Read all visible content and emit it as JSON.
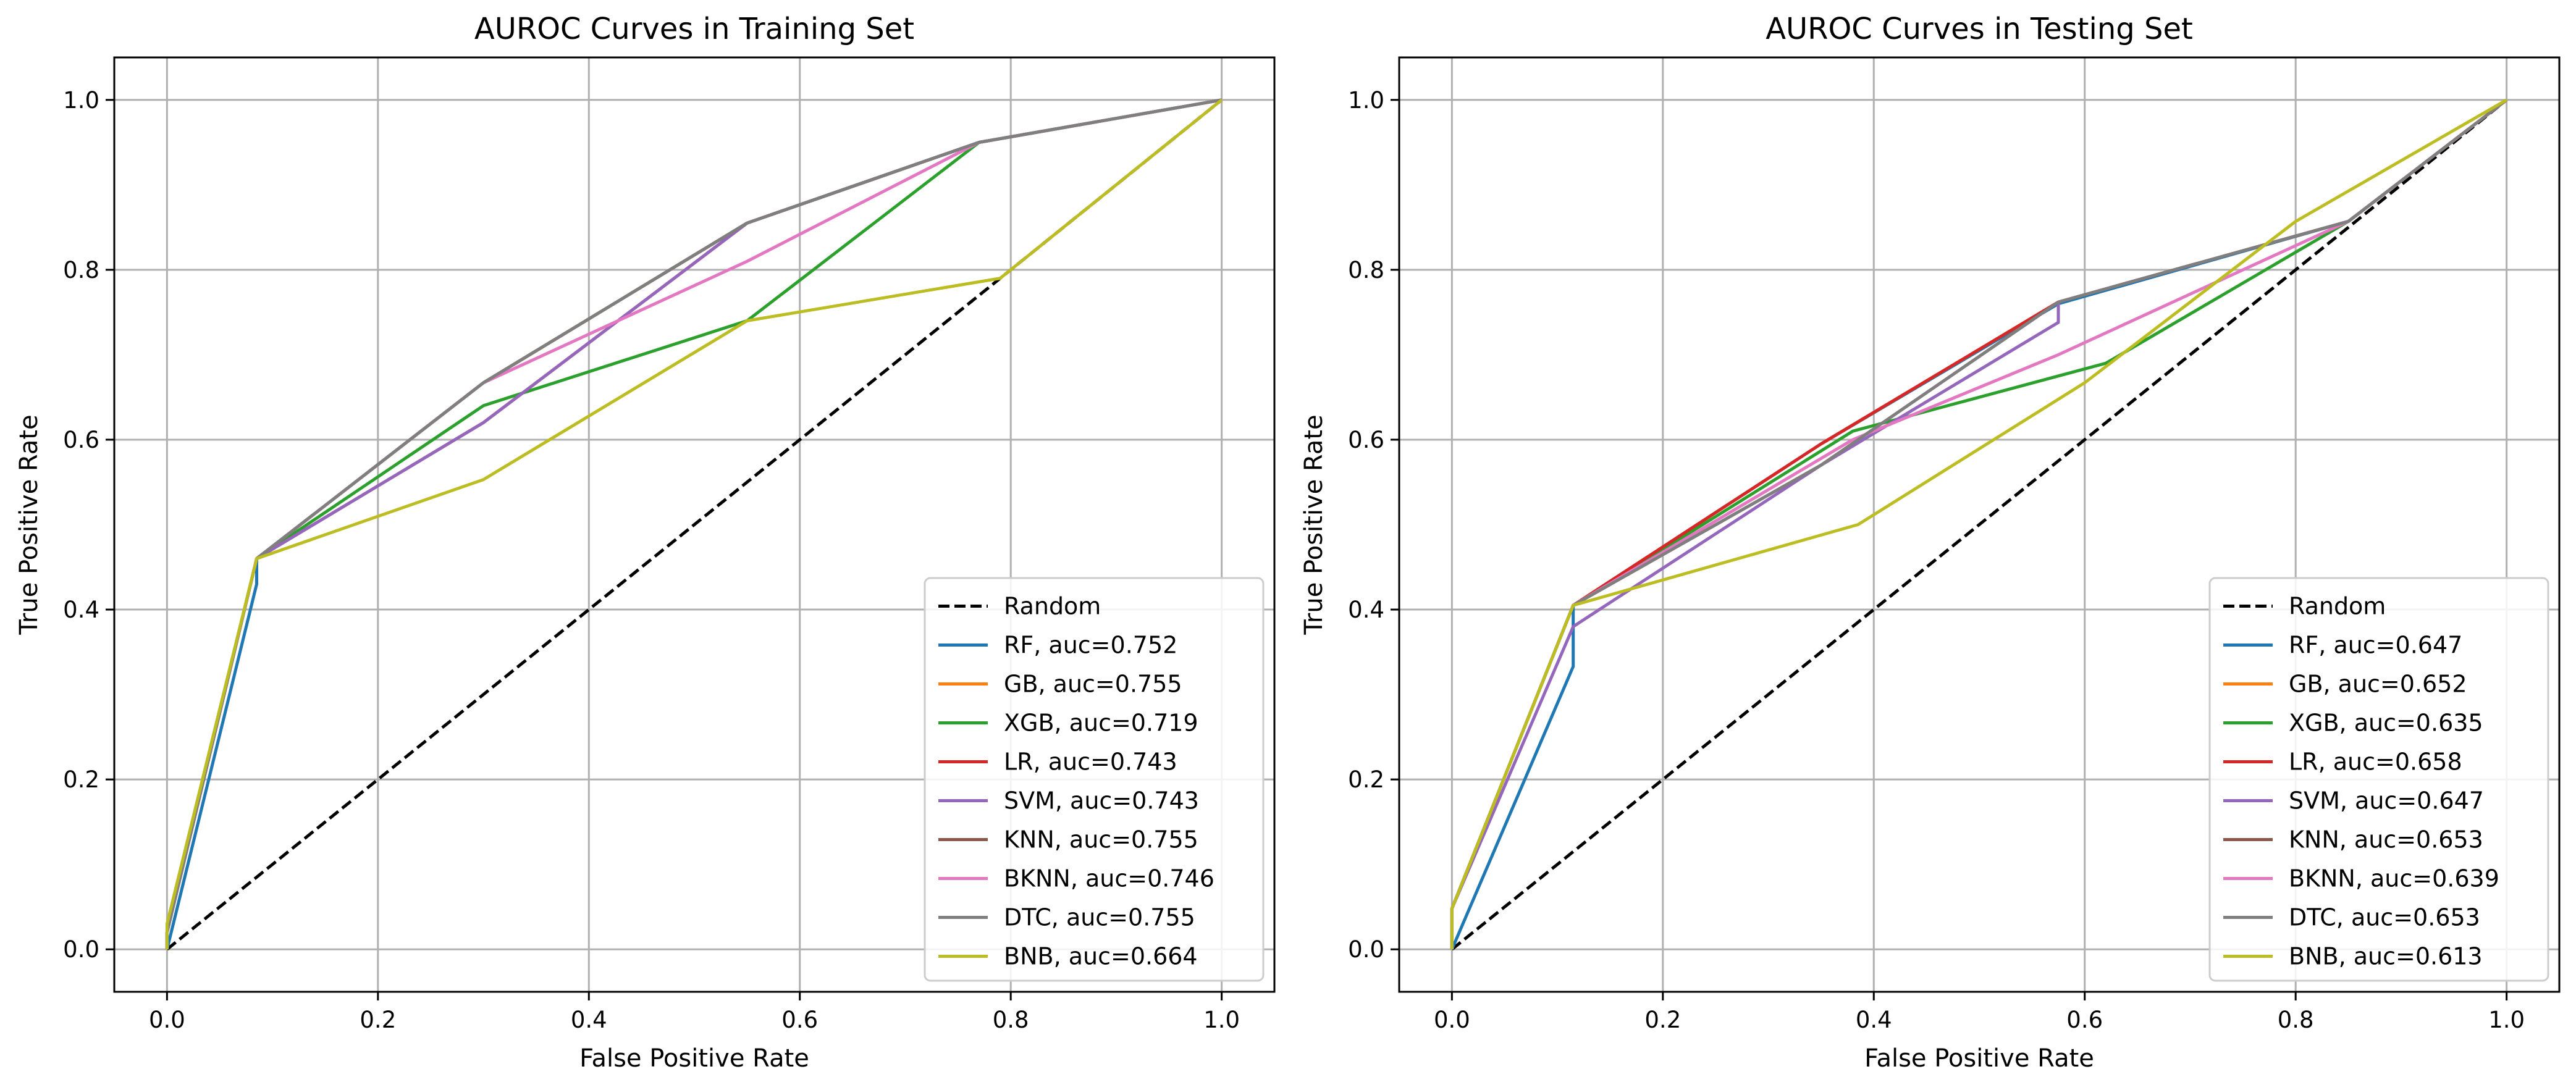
{
  "chart_data": [
    {
      "type": "line",
      "title": "AUROC Curves in Training Set",
      "xlabel": "False Positive Rate",
      "ylabel": "True Positive Rate",
      "xlim": [
        -0.05,
        1.05
      ],
      "ylim": [
        -0.05,
        1.05
      ],
      "xticks": [
        "0.0",
        "0.2",
        "0.4",
        "0.6",
        "0.8",
        "1.0"
      ],
      "yticks": [
        "0.0",
        "0.2",
        "0.4",
        "0.6",
        "0.8",
        "1.0"
      ],
      "grid": true,
      "legend_position": "lower right",
      "series": [
        {
          "name": "Random",
          "color": "#000000",
          "dash": true,
          "x": [
            0,
            1
          ],
          "y": [
            0,
            1
          ]
        },
        {
          "name": "RF, auc=0.752",
          "color": "#1f77b4",
          "x": [
            0,
            0.085,
            0.085,
            0.3,
            0.55,
            0.77,
            1.0
          ],
          "y": [
            0,
            0.43,
            0.46,
            0.667,
            0.855,
            0.95,
            1.0
          ]
        },
        {
          "name": "GB, auc=0.755",
          "color": "#ff7f0e",
          "x": [
            0,
            0.0,
            0.085,
            0.3,
            0.55,
            0.77,
            1.0
          ],
          "y": [
            0,
            0.02,
            0.46,
            0.667,
            0.855,
            0.95,
            1.0
          ]
        },
        {
          "name": "XGB, auc=0.719",
          "color": "#2ca02c",
          "x": [
            0,
            0.0,
            0.085,
            0.3,
            0.55,
            0.77,
            1.0
          ],
          "y": [
            0,
            0.02,
            0.46,
            0.64,
            0.74,
            0.95,
            1.0
          ]
        },
        {
          "name": "LR, auc=0.743",
          "color": "#d62728",
          "x": [
            0,
            0.0,
            0.085,
            0.3,
            0.55,
            0.77,
            1.0
          ],
          "y": [
            0,
            0.02,
            0.46,
            0.62,
            0.855,
            0.95,
            1.0
          ]
        },
        {
          "name": "SVM, auc=0.743",
          "color": "#9467bd",
          "x": [
            0,
            0.0,
            0.085,
            0.3,
            0.55,
            0.77,
            1.0
          ],
          "y": [
            0,
            0.02,
            0.46,
            0.62,
            0.855,
            0.95,
            1.0
          ]
        },
        {
          "name": "KNN, auc=0.755",
          "color": "#8c564b",
          "x": [
            0,
            0.0,
            0.085,
            0.3,
            0.55,
            0.77,
            1.0
          ],
          "y": [
            0,
            0.02,
            0.46,
            0.667,
            0.855,
            0.95,
            1.0
          ]
        },
        {
          "name": "BKNN, auc=0.746",
          "color": "#e377c2",
          "x": [
            0,
            0.0,
            0.085,
            0.3,
            0.55,
            0.77,
            1.0
          ],
          "y": [
            0,
            0.02,
            0.46,
            0.667,
            0.81,
            0.95,
            1.0
          ]
        },
        {
          "name": "DTC, auc=0.755",
          "color": "#7f7f7f",
          "x": [
            0,
            0.0,
            0.085,
            0.3,
            0.55,
            0.77,
            1.0
          ],
          "y": [
            0,
            0.02,
            0.46,
            0.667,
            0.855,
            0.95,
            1.0
          ]
        },
        {
          "name": "BNB, auc=0.664",
          "color": "#bcbd22",
          "x": [
            0,
            0.0,
            0.085,
            0.3,
            0.55,
            0.79,
            1.0
          ],
          "y": [
            0,
            0.03,
            0.46,
            0.553,
            0.74,
            0.79,
            1.0
          ]
        }
      ]
    },
    {
      "type": "line",
      "title": "AUROC Curves in Testing Set",
      "xlabel": "False Positive Rate",
      "ylabel": "True Positive Rate",
      "xlim": [
        -0.05,
        1.05
      ],
      "ylim": [
        -0.05,
        1.05
      ],
      "xticks": [
        "0.0",
        "0.2",
        "0.4",
        "0.6",
        "0.8",
        "1.0"
      ],
      "yticks": [
        "0.0",
        "0.2",
        "0.4",
        "0.6",
        "0.8",
        "1.0"
      ],
      "grid": true,
      "legend_position": "lower right",
      "series": [
        {
          "name": "Random",
          "color": "#000000",
          "dash": true,
          "x": [
            0,
            1
          ],
          "y": [
            0,
            1
          ]
        },
        {
          "name": "RF, auc=0.647",
          "color": "#1f77b4",
          "x": [
            0,
            0.115,
            0.115,
            0.35,
            0.575,
            0.85,
            1.0
          ],
          "y": [
            0,
            0.333,
            0.405,
            0.595,
            0.76,
            0.857,
            1.0
          ]
        },
        {
          "name": "GB, auc=0.652",
          "color": "#ff7f0e",
          "x": [
            0,
            0.0,
            0.115,
            0.35,
            0.575,
            0.85,
            1.0
          ],
          "y": [
            0,
            0.048,
            0.405,
            0.595,
            0.762,
            0.857,
            1.0
          ]
        },
        {
          "name": "XGB, auc=0.635",
          "color": "#2ca02c",
          "x": [
            0,
            0.0,
            0.115,
            0.38,
            0.62,
            0.85,
            1.0
          ],
          "y": [
            0,
            0.048,
            0.405,
            0.61,
            0.69,
            0.857,
            1.0
          ]
        },
        {
          "name": "LR, auc=0.658",
          "color": "#d62728",
          "x": [
            0,
            0.0,
            0.115,
            0.35,
            0.575,
            0.85,
            1.0
          ],
          "y": [
            0,
            0.048,
            0.405,
            0.595,
            0.762,
            0.857,
            1.0
          ]
        },
        {
          "name": "SVM, auc=0.647",
          "color": "#9467bd",
          "x": [
            0,
            0.0,
            0.115,
            0.35,
            0.575,
            0.575,
            0.85,
            1.0
          ],
          "y": [
            0,
            0.048,
            0.38,
            0.57,
            0.738,
            0.762,
            0.857,
            1.0
          ]
        },
        {
          "name": "KNN, auc=0.653",
          "color": "#8c564b",
          "x": [
            0,
            0.0,
            0.115,
            0.35,
            0.575,
            0.85,
            1.0
          ],
          "y": [
            0,
            0.048,
            0.405,
            0.57,
            0.762,
            0.857,
            1.0
          ]
        },
        {
          "name": "BKNN, auc=0.639",
          "color": "#e377c2",
          "x": [
            0,
            0.0,
            0.115,
            0.38,
            0.575,
            0.85,
            1.0
          ],
          "y": [
            0,
            0.048,
            0.405,
            0.6,
            0.7,
            0.857,
            1.0
          ]
        },
        {
          "name": "DTC, auc=0.653",
          "color": "#7f7f7f",
          "x": [
            0,
            0.0,
            0.115,
            0.35,
            0.575,
            0.85,
            1.0
          ],
          "y": [
            0,
            0.048,
            0.405,
            0.57,
            0.762,
            0.857,
            1.0
          ]
        },
        {
          "name": "BNB, auc=0.613",
          "color": "#bcbd22",
          "x": [
            0,
            0.0,
            0.115,
            0.385,
            0.6,
            0.8,
            1.0
          ],
          "y": [
            0,
            0.048,
            0.405,
            0.5,
            0.667,
            0.857,
            1.0
          ]
        }
      ]
    }
  ]
}
